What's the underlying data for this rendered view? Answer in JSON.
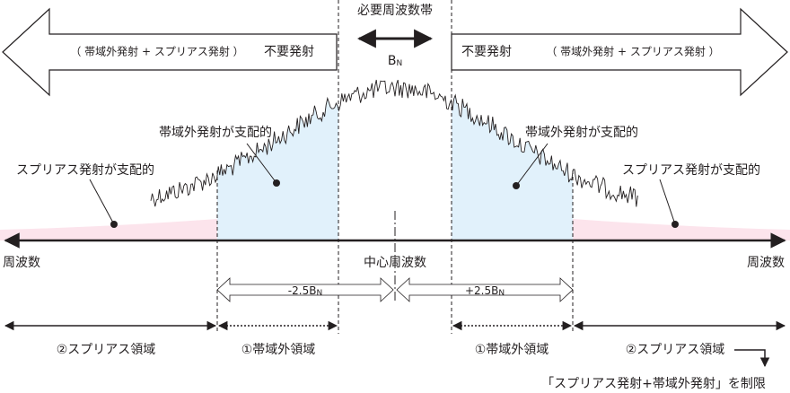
{
  "top_label": "必要周波数帯",
  "bandwidth": {
    "base": "B",
    "sub": "N"
  },
  "left_arrow": {
    "detail": "（ 帯域外発射 + スプリアス発射 ）",
    "label": "不要発射"
  },
  "right_arrow": {
    "label": "不要発射",
    "detail": "（ 帯域外発射 + スプリアス発射 ）"
  },
  "callouts": [
    "帯域外発射が支配的",
    "帯域外発射が支配的",
    "スプリアス発射が支配的",
    "スプリアス発射が支配的"
  ],
  "axis": {
    "left": "周波数",
    "center": "中心周波数",
    "right": "周波数"
  },
  "offsets": [
    {
      "base": "-2.5B",
      "sub": "N"
    },
    {
      "base": "+2.5B",
      "sub": "N"
    }
  ],
  "regions": [
    "②スプリアス領域",
    "①帯域外領域",
    "①帯域外領域",
    "②スプリアス領域"
  ],
  "note": "「スプリアス発射+帯域外発射」を制限"
}
